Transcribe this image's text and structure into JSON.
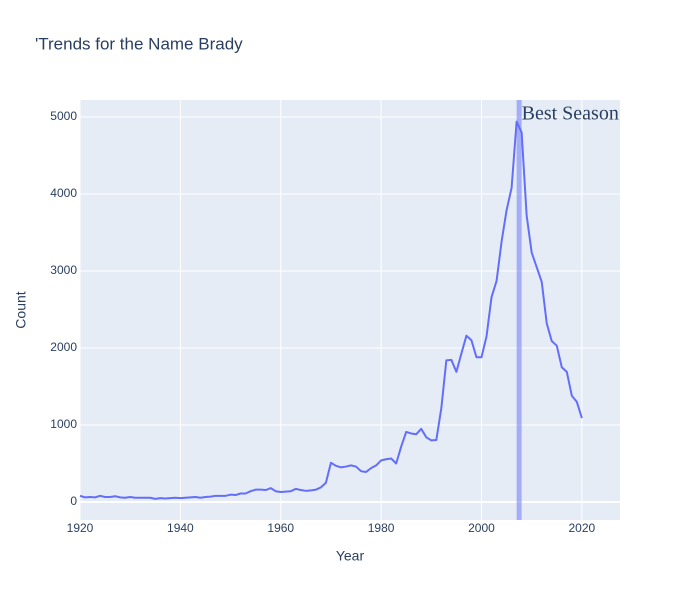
{
  "chart_data": {
    "type": "line",
    "title": "'Trends for the Name Brady",
    "x_label": "Year",
    "y_label": "Count",
    "x": [
      1920,
      1921,
      1922,
      1923,
      1924,
      1925,
      1926,
      1927,
      1928,
      1929,
      1930,
      1931,
      1932,
      1933,
      1934,
      1935,
      1936,
      1937,
      1938,
      1939,
      1940,
      1941,
      1942,
      1943,
      1944,
      1945,
      1946,
      1947,
      1948,
      1949,
      1950,
      1951,
      1952,
      1953,
      1954,
      1955,
      1956,
      1957,
      1958,
      1959,
      1960,
      1961,
      1962,
      1963,
      1964,
      1965,
      1966,
      1967,
      1968,
      1969,
      1970,
      1971,
      1972,
      1973,
      1974,
      1975,
      1976,
      1977,
      1978,
      1979,
      1980,
      1981,
      1982,
      1983,
      1984,
      1985,
      1986,
      1987,
      1988,
      1989,
      1990,
      1991,
      1992,
      1993,
      1994,
      1995,
      1996,
      1997,
      1998,
      1999,
      2000,
      2001,
      2002,
      2003,
      2004,
      2005,
      2006,
      2007,
      2008,
      2009,
      2010,
      2011,
      2012,
      2013,
      2014,
      2015,
      2016,
      2017,
      2018,
      2019,
      2020
    ],
    "values": [
      80,
      60,
      65,
      60,
      80,
      65,
      65,
      75,
      60,
      55,
      65,
      55,
      55,
      55,
      55,
      40,
      50,
      45,
      50,
      55,
      50,
      55,
      60,
      65,
      55,
      65,
      70,
      80,
      80,
      80,
      95,
      90,
      110,
      110,
      140,
      160,
      160,
      155,
      180,
      140,
      130,
      135,
      140,
      170,
      155,
      145,
      150,
      160,
      190,
      250,
      510,
      470,
      450,
      460,
      475,
      460,
      400,
      390,
      440,
      475,
      540,
      555,
      565,
      500,
      720,
      910,
      890,
      880,
      950,
      840,
      800,
      805,
      1220,
      1840,
      1845,
      1690,
      1930,
      2160,
      2100,
      1880,
      1880,
      2150,
      2660,
      2870,
      3380,
      3790,
      4080,
      4940,
      4800,
      3720,
      3240,
      3050,
      2860,
      2320,
      2090,
      2030,
      1750,
      1690,
      1380,
      1300,
      1090
    ],
    "color": "#636efa",
    "xlim": [
      1920,
      2027.6
    ],
    "xticks": [
      1920,
      1940,
      1960,
      1980,
      2000,
      2020
    ],
    "ylim": [
      -234,
      5221
    ],
    "yticks": [
      0,
      1000,
      2000,
      3000,
      4000,
      5000
    ],
    "grid": true,
    "highlight": {
      "x0": 2007,
      "x1": 2008,
      "color": "#636efa",
      "label": "Best Season"
    }
  }
}
